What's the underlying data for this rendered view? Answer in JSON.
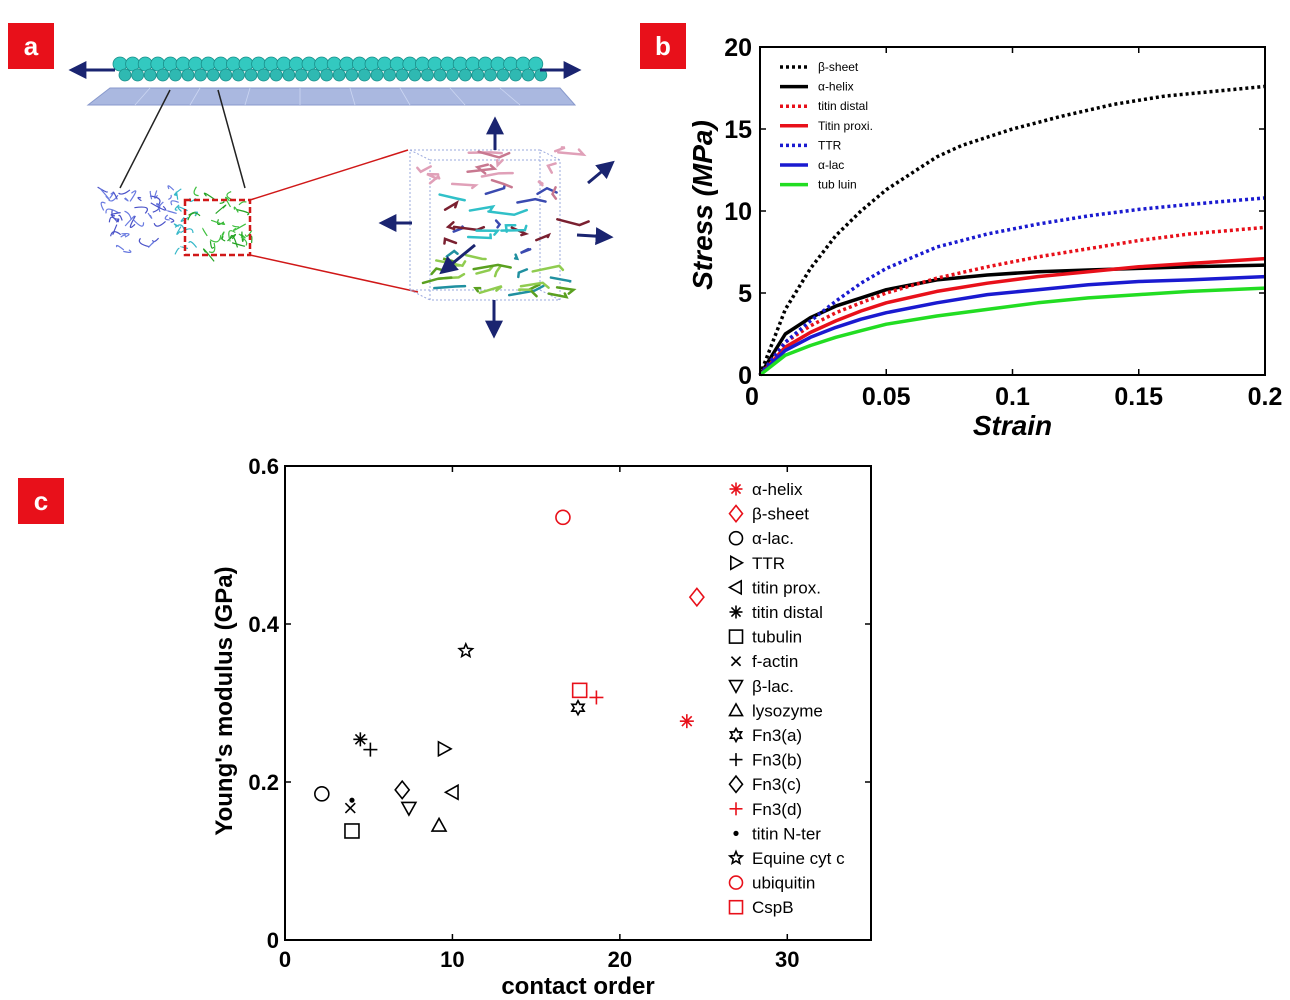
{
  "panel_labels": {
    "a": "a",
    "b": "b",
    "c": "c"
  },
  "colors": {
    "tag_bg": "#e8101a",
    "red": "#e8101a",
    "blue": "#1a1ad0",
    "green": "#22dd22",
    "black": "#000000"
  },
  "illustration": {
    "description_icons": [
      "protein-filament",
      "stretch-arrow",
      "unit-cell-box",
      "zoom-box"
    ]
  },
  "chart_data": [
    {
      "id": "b",
      "type": "line",
      "xlabel": "Strain",
      "ylabel": "Stress (MPa)",
      "xlim": [
        0,
        0.2
      ],
      "ylim": [
        0,
        20
      ],
      "xticks": [
        "0",
        "0.05",
        "0.1",
        "0.15",
        "0.2"
      ],
      "yticks": [
        "0",
        "5",
        "10",
        "15",
        "20"
      ],
      "legend_position": "top-left",
      "series": [
        {
          "name": "β-sheet",
          "color": "#000000",
          "dash": "dotted",
          "x": [
            0,
            0.01,
            0.02,
            0.03,
            0.04,
            0.05,
            0.06,
            0.07,
            0.08,
            0.1,
            0.12,
            0.14,
            0.16,
            0.18,
            0.2
          ],
          "y": [
            0,
            4.0,
            6.5,
            8.5,
            10.0,
            11.3,
            12.3,
            13.3,
            14.0,
            15.0,
            15.8,
            16.5,
            17.0,
            17.3,
            17.6
          ]
        },
        {
          "name": "α-helix",
          "color": "#000000",
          "dash": "solid",
          "x": [
            0,
            0.01,
            0.02,
            0.03,
            0.04,
            0.05,
            0.07,
            0.09,
            0.11,
            0.13,
            0.15,
            0.17,
            0.2
          ],
          "y": [
            0,
            2.5,
            3.5,
            4.2,
            4.7,
            5.2,
            5.8,
            6.1,
            6.3,
            6.4,
            6.5,
            6.6,
            6.7
          ]
        },
        {
          "name": "titin distal",
          "color": "#e8101a",
          "dash": "dotted",
          "x": [
            0,
            0.01,
            0.02,
            0.03,
            0.04,
            0.05,
            0.07,
            0.09,
            0.11,
            0.13,
            0.15,
            0.17,
            0.2
          ],
          "y": [
            0,
            2.0,
            3.0,
            3.8,
            4.4,
            5.0,
            5.9,
            6.6,
            7.2,
            7.7,
            8.2,
            8.6,
            9.0
          ]
        },
        {
          "name": "Titin proxi.",
          "color": "#e8101a",
          "dash": "solid",
          "x": [
            0,
            0.01,
            0.02,
            0.03,
            0.04,
            0.05,
            0.07,
            0.09,
            0.11,
            0.13,
            0.15,
            0.17,
            0.2
          ],
          "y": [
            0,
            1.7,
            2.6,
            3.3,
            3.9,
            4.4,
            5.1,
            5.6,
            6.0,
            6.3,
            6.6,
            6.8,
            7.1
          ]
        },
        {
          "name": "TTR",
          "color": "#1a1ad0",
          "dash": "dotted",
          "x": [
            0,
            0.01,
            0.02,
            0.03,
            0.04,
            0.05,
            0.07,
            0.09,
            0.11,
            0.13,
            0.15,
            0.17,
            0.2
          ],
          "y": [
            0,
            2.0,
            3.3,
            4.5,
            5.6,
            6.5,
            7.8,
            8.6,
            9.2,
            9.7,
            10.1,
            10.4,
            10.8
          ]
        },
        {
          "name": "α-lac",
          "color": "#1a1ad0",
          "dash": "solid",
          "x": [
            0,
            0.01,
            0.02,
            0.03,
            0.04,
            0.05,
            0.07,
            0.09,
            0.11,
            0.13,
            0.15,
            0.17,
            0.2
          ],
          "y": [
            0,
            1.5,
            2.3,
            2.9,
            3.4,
            3.8,
            4.4,
            4.9,
            5.2,
            5.5,
            5.7,
            5.8,
            6.0
          ]
        },
        {
          "name": "tub luin",
          "color": "#22dd22",
          "dash": "solid",
          "x": [
            0,
            0.01,
            0.02,
            0.03,
            0.04,
            0.05,
            0.07,
            0.09,
            0.11,
            0.13,
            0.15,
            0.17,
            0.2
          ],
          "y": [
            0,
            1.2,
            1.8,
            2.3,
            2.7,
            3.1,
            3.6,
            4.0,
            4.4,
            4.7,
            4.9,
            5.1,
            5.3
          ]
        }
      ]
    },
    {
      "id": "c",
      "type": "scatter",
      "xlabel": "contact order",
      "ylabel": "Young's modulus (GPa)",
      "xlim": [
        0,
        35
      ],
      "ylim": [
        0,
        0.6
      ],
      "xticks": [
        "0",
        "10",
        "20",
        "30"
      ],
      "yticks": [
        "0",
        "0.2",
        "0.4",
        "0.6"
      ],
      "legend_position": "right",
      "points": [
        {
          "name": "α-helix",
          "marker": "asterisk",
          "color": "#e8101a",
          "x": 24.0,
          "y": 0.277
        },
        {
          "name": "β-sheet",
          "marker": "diamond",
          "color": "#e8101a",
          "x": 24.6,
          "y": 0.434
        },
        {
          "name": "α-lac.",
          "marker": "circle",
          "color": "#000000",
          "x": 2.2,
          "y": 0.185
        },
        {
          "name": "TTR",
          "marker": "triangle-right",
          "color": "#000000",
          "x": 9.5,
          "y": 0.242
        },
        {
          "name": "titin prox.",
          "marker": "triangle-left",
          "color": "#000000",
          "x": 10.0,
          "y": 0.187
        },
        {
          "name": "titin distal",
          "marker": "asterisk",
          "color": "#000000",
          "x": 4.5,
          "y": 0.254
        },
        {
          "name": "tubulin",
          "marker": "square",
          "color": "#000000",
          "x": 4.0,
          "y": 0.138
        },
        {
          "name": "f-actin",
          "marker": "x",
          "color": "#000000",
          "x": 3.9,
          "y": 0.167
        },
        {
          "name": "β-lac.",
          "marker": "triangle-down",
          "color": "#000000",
          "x": 7.4,
          "y": 0.167
        },
        {
          "name": "lysozyme",
          "marker": "triangle-up",
          "color": "#000000",
          "x": 9.2,
          "y": 0.145
        },
        {
          "name": "Fn3(a)",
          "marker": "hexagram",
          "color": "#000000",
          "x": 17.5,
          "y": 0.294
        },
        {
          "name": "Fn3(b)",
          "marker": "plus",
          "color": "#000000",
          "x": 5.1,
          "y": 0.241
        },
        {
          "name": "Fn3(c)",
          "marker": "diamond",
          "color": "#000000",
          "x": 7.0,
          "y": 0.19
        },
        {
          "name": "Fn3(d)",
          "marker": "plus",
          "color": "#e8101a",
          "x": 18.6,
          "y": 0.307
        },
        {
          "name": "titin N-ter",
          "marker": "dot",
          "color": "#000000",
          "x": 4.0,
          "y": 0.177
        },
        {
          "name": "Equine cyt c",
          "marker": "pentagram",
          "color": "#000000",
          "x": 10.8,
          "y": 0.366
        },
        {
          "name": "ubiquitin",
          "marker": "circle",
          "color": "#e8101a",
          "x": 16.6,
          "y": 0.535
        },
        {
          "name": "CspB",
          "marker": "square",
          "color": "#e8101a",
          "x": 17.6,
          "y": 0.316
        }
      ]
    }
  ]
}
